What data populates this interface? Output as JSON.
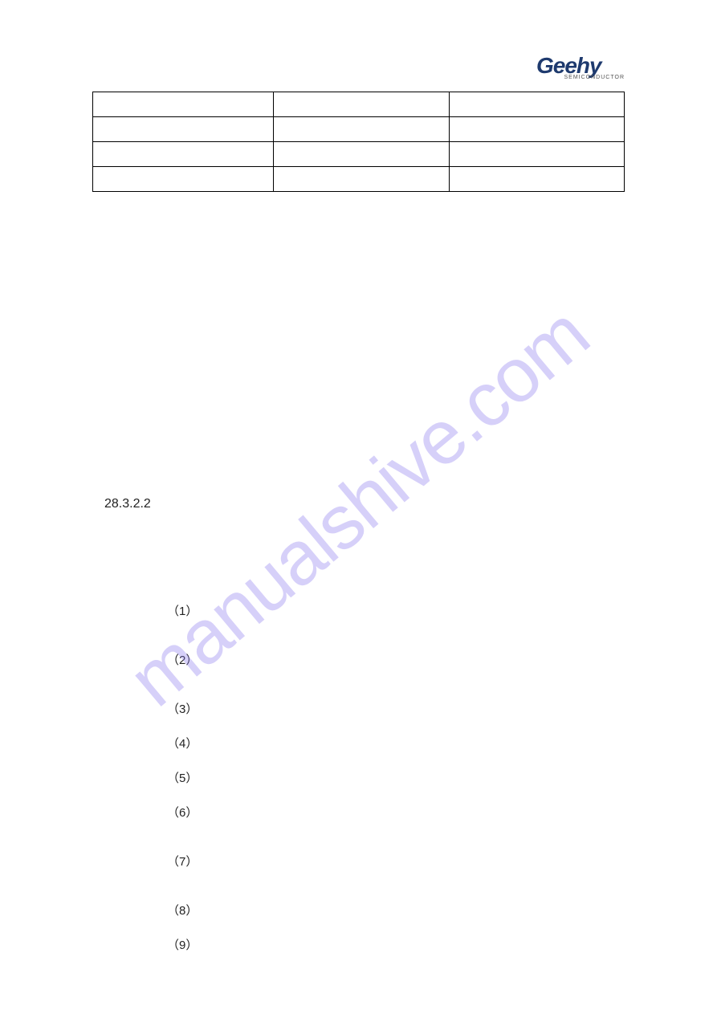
{
  "logo": {
    "main": "Geehy",
    "sub": "SEMICONDUCTOR"
  },
  "watermark": "manualshive.com",
  "section_number": "28.3.2.2",
  "steps": [
    {
      "num": "（1）"
    },
    {
      "num": "（2）"
    },
    {
      "num": "（3）"
    },
    {
      "num": "（4）"
    },
    {
      "num": "（5）"
    },
    {
      "num": "（6）"
    },
    {
      "num": "（7）"
    },
    {
      "num": "（8）"
    },
    {
      "num": "（9）"
    }
  ],
  "colors": {
    "watermark": "rgba(138, 121, 237, 0.35)",
    "logo": "#1e3a6e",
    "border": "#000000",
    "background": "#ffffff",
    "text": "#222222"
  }
}
